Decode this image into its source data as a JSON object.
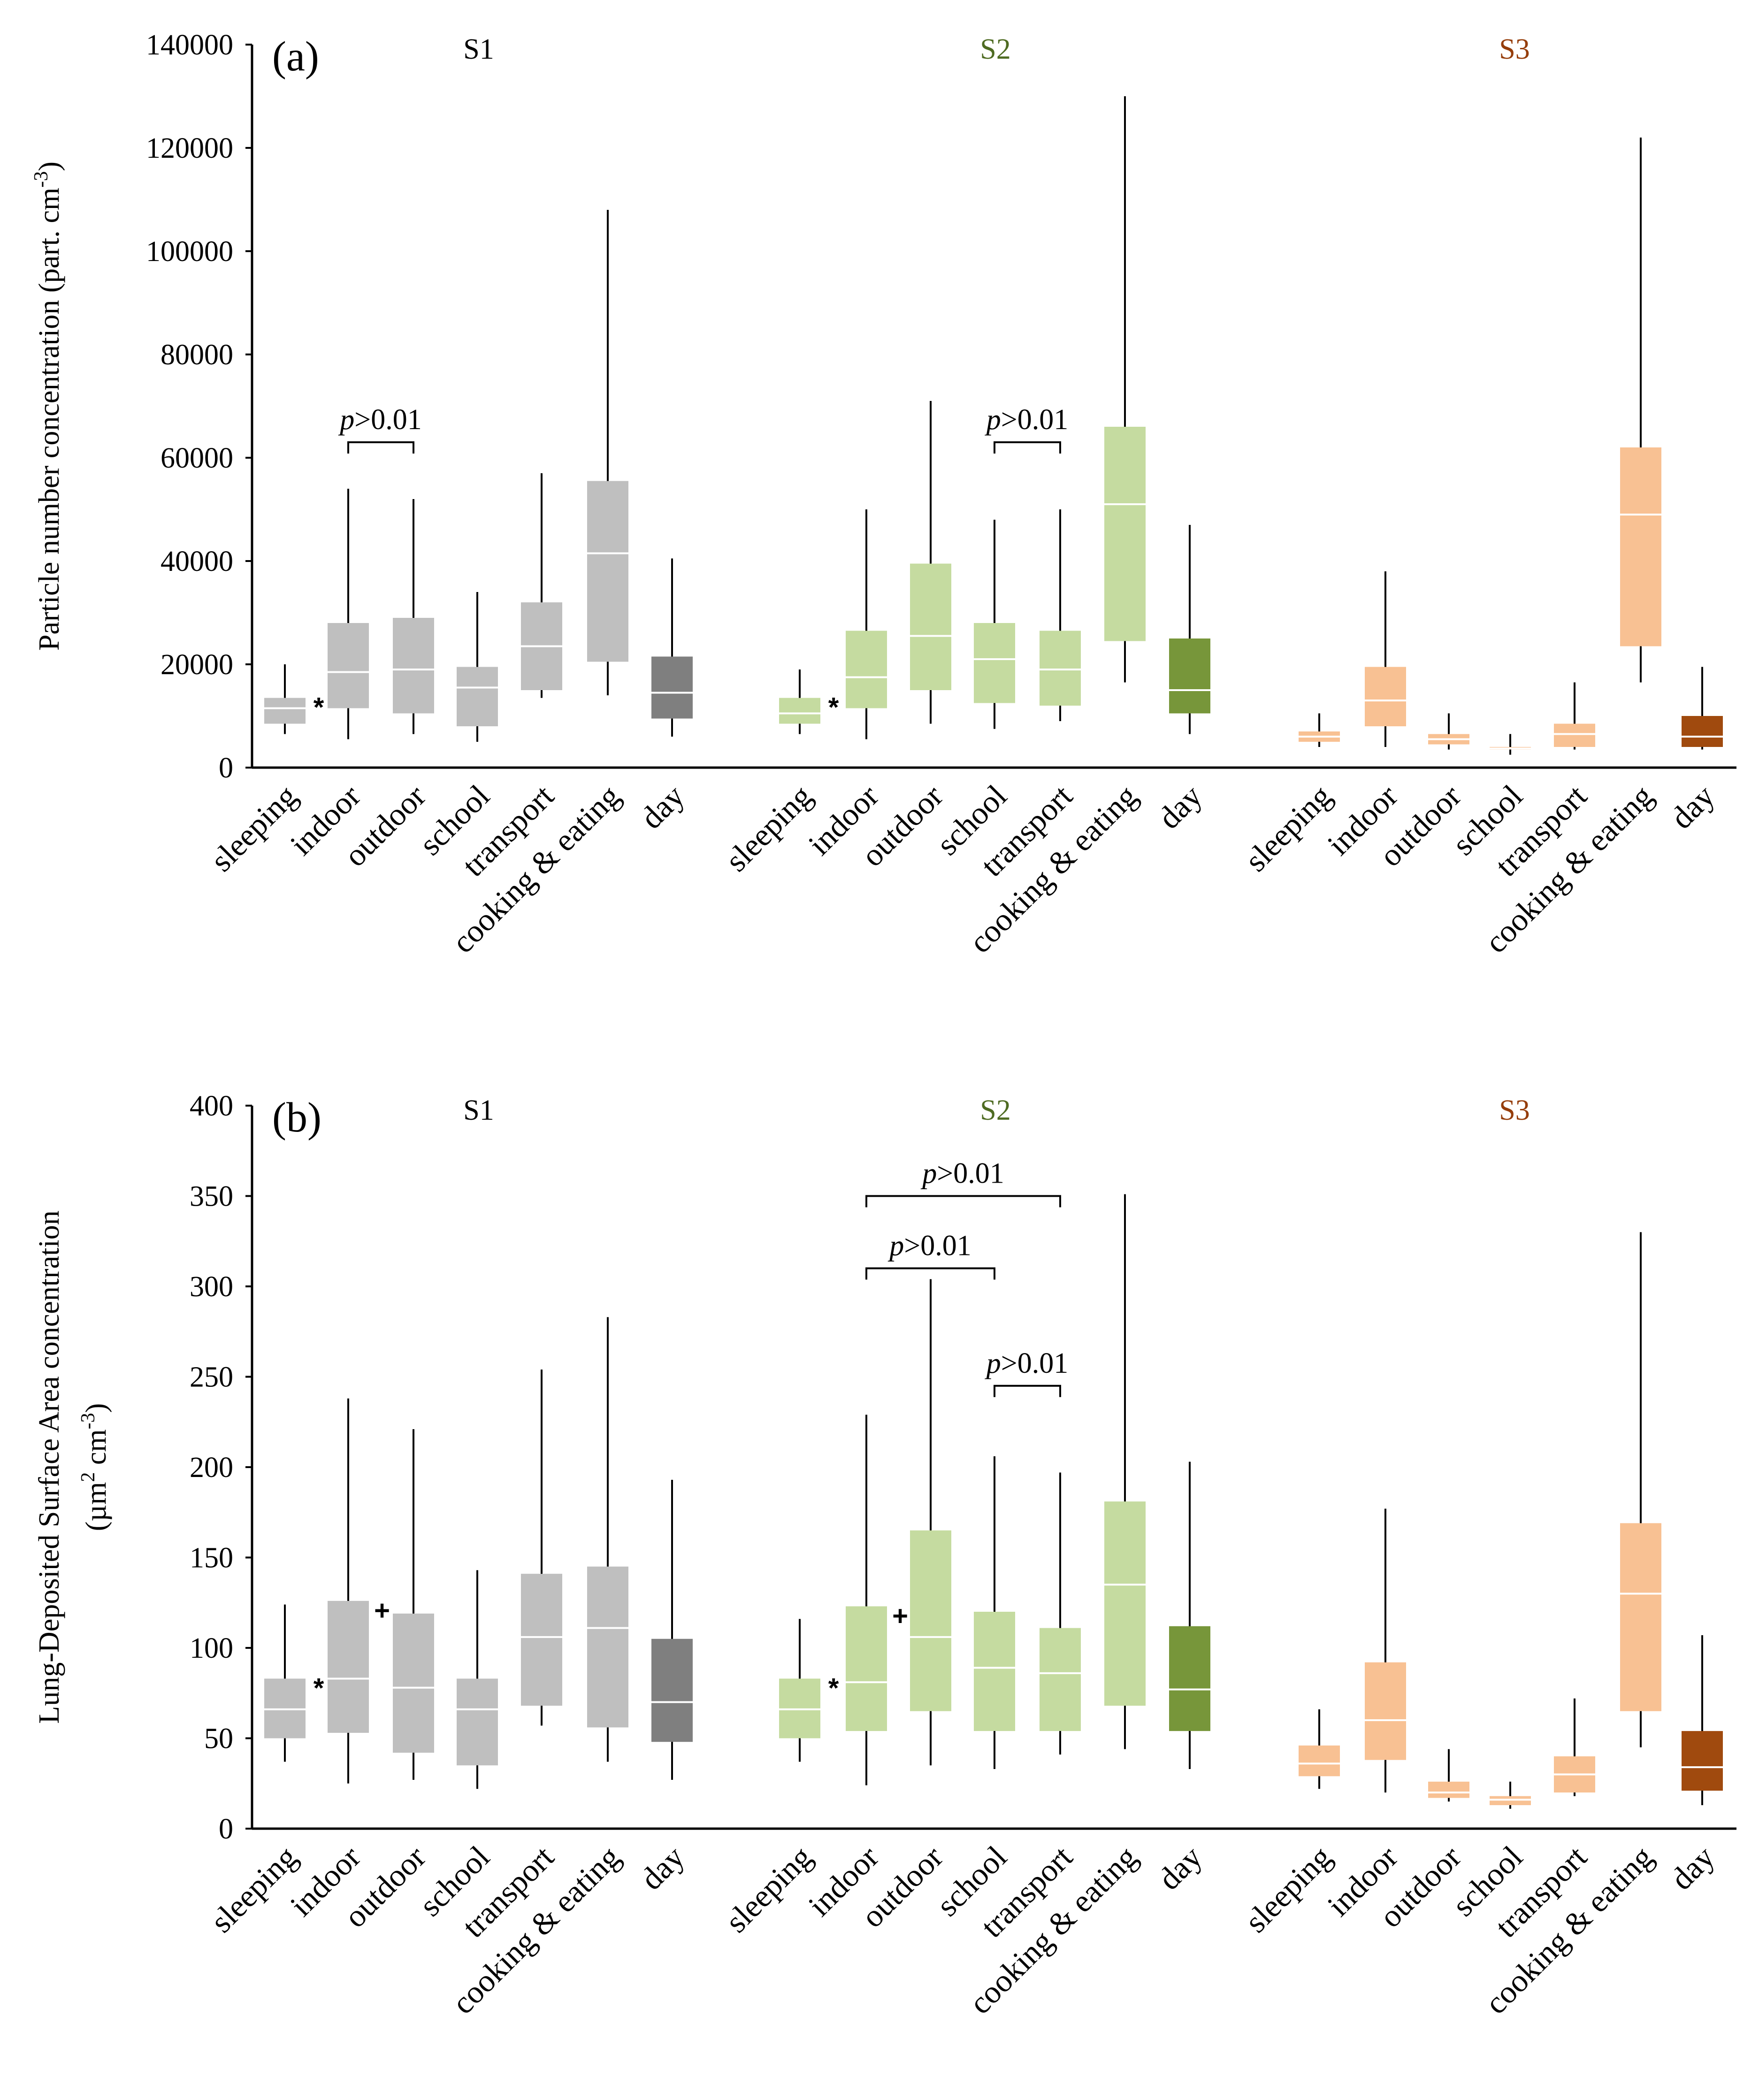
{
  "chart_data": [
    {
      "type": "box",
      "panel_label": "(a)",
      "ylabel": "Particle number concentration (part. cm",
      "ylabel_superscript": "-3",
      "ylabel_close": ")",
      "ylim": [
        0,
        140000
      ],
      "yticks": [
        0,
        20000,
        40000,
        60000,
        80000,
        100000,
        120000,
        140000
      ],
      "ytick_labels": [
        "0",
        "20000",
        "40000",
        "60000",
        "80000",
        "100000",
        "120000",
        "140000"
      ],
      "groups": [
        {
          "name": "S1",
          "name_color": "#000000",
          "color": "#bfbfbf",
          "day_color": "#7f7f7f",
          "categories": [
            "sleeping",
            "indoor",
            "outdoor",
            "school",
            "transport",
            "cooking & eating",
            "day"
          ],
          "boxes": [
            {
              "min": 6500,
              "q1": 8500,
              "median": 11500,
              "q3": 13500,
              "max": 20000
            },
            {
              "min": 5500,
              "q1": 11500,
              "median": 18500,
              "q3": 28000,
              "max": 54000
            },
            {
              "min": 6500,
              "q1": 10500,
              "median": 19000,
              "q3": 29000,
              "max": 52000
            },
            {
              "min": 5000,
              "q1": 8000,
              "median": 15500,
              "q3": 19500,
              "max": 34000
            },
            {
              "min": 13500,
              "q1": 15000,
              "median": 23500,
              "q3": 32000,
              "max": 57000
            },
            {
              "min": 14000,
              "q1": 20500,
              "median": 41500,
              "q3": 55500,
              "max": 108000
            },
            {
              "min": 6000,
              "q1": 9500,
              "median": 14500,
              "q3": 21500,
              "max": 40500
            }
          ]
        },
        {
          "name": "S2",
          "name_color": "#4e6b22",
          "color": "#c5dba0",
          "day_color": "#77963a",
          "categories": [
            "sleeping",
            "indoor",
            "outdoor",
            "school",
            "transport",
            "cooking & eating",
            "day"
          ],
          "boxes": [
            {
              "min": 6500,
              "q1": 8500,
              "median": 10500,
              "q3": 13500,
              "max": 19000
            },
            {
              "min": 5500,
              "q1": 11500,
              "median": 17500,
              "q3": 26500,
              "max": 50000
            },
            {
              "min": 8500,
              "q1": 15000,
              "median": 25500,
              "q3": 39500,
              "max": 71000
            },
            {
              "min": 7500,
              "q1": 12500,
              "median": 21000,
              "q3": 28000,
              "max": 48000
            },
            {
              "min": 9000,
              "q1": 12000,
              "median": 19000,
              "q3": 26500,
              "max": 50000
            },
            {
              "min": 16500,
              "q1": 24500,
              "median": 51000,
              "q3": 66000,
              "max": 130000
            },
            {
              "min": 6500,
              "q1": 10500,
              "median": 15000,
              "q3": 25000,
              "max": 47000
            }
          ]
        },
        {
          "name": "S3",
          "name_color": "#953d0a",
          "color": "#f8c193",
          "day_color": "#a04a0e",
          "categories": [
            "sleeping",
            "indoor",
            "outdoor",
            "school",
            "transport",
            "cooking & eating",
            "day"
          ],
          "boxes": [
            {
              "min": 4000,
              "q1": 5000,
              "median": 6000,
              "q3": 7000,
              "max": 10500
            },
            {
              "min": 4000,
              "q1": 8000,
              "median": 13000,
              "q3": 19500,
              "max": 38000
            },
            {
              "min": 3500,
              "q1": 4500,
              "median": 5500,
              "q3": 6500,
              "max": 10500
            },
            {
              "min": 2500,
              "q1": 3500,
              "median": 3700,
              "q3": 4000,
              "max": 6500
            },
            {
              "min": 3500,
              "q1": 4000,
              "median": 6500,
              "q3": 8500,
              "max": 16500
            },
            {
              "min": 16500,
              "q1": 23500,
              "median": 49000,
              "q3": 62000,
              "max": 122000
            },
            {
              "min": 3500,
              "q1": 4000,
              "median": 6000,
              "q3": 10000,
              "max": 19500
            }
          ]
        }
      ],
      "markers": [
        {
          "group": 0,
          "box": 0,
          "symbol": "*"
        },
        {
          "group": 1,
          "box": 0,
          "symbol": "*"
        }
      ],
      "annotations": [
        {
          "text_italic": "p",
          "text": ">0.01",
          "group": 0,
          "from": 1,
          "to": 2,
          "y": 63000
        },
        {
          "text_italic": "p",
          "text": ">0.01",
          "group": 1,
          "from": 3,
          "to": 4,
          "y": 63000
        }
      ]
    },
    {
      "type": "box",
      "panel_label": "(b)",
      "ylabel": "Lung-Deposited Surface Area concentration",
      "ylabel2": "(µm",
      "ylabel2_sup1": "2",
      "ylabel2_mid": " cm",
      "ylabel2_sup2": "-3",
      "ylabel2_close": ")",
      "ylim": [
        0,
        400
      ],
      "yticks": [
        0,
        50,
        100,
        150,
        200,
        250,
        300,
        350,
        400
      ],
      "ytick_labels": [
        "0",
        "50",
        "100",
        "150",
        "200",
        "250",
        "300",
        "350",
        "400"
      ],
      "groups": [
        {
          "name": "S1",
          "name_color": "#000000",
          "color": "#bfbfbf",
          "day_color": "#7f7f7f",
          "categories": [
            "sleeping",
            "indoor",
            "outdoor",
            "school",
            "transport",
            "cooking & eating",
            "day"
          ],
          "boxes": [
            {
              "min": 37,
              "q1": 50,
              "median": 66,
              "q3": 83,
              "max": 124
            },
            {
              "min": 25,
              "q1": 53,
              "median": 83,
              "q3": 126,
              "max": 238
            },
            {
              "min": 27,
              "q1": 42,
              "median": 78,
              "q3": 119,
              "max": 221
            },
            {
              "min": 22,
              "q1": 35,
              "median": 66,
              "q3": 83,
              "max": 143
            },
            {
              "min": 57,
              "q1": 68,
              "median": 106,
              "q3": 141,
              "max": 254
            },
            {
              "min": 37,
              "q1": 56,
              "median": 111,
              "q3": 145,
              "max": 283
            },
            {
              "min": 27,
              "q1": 48,
              "median": 70,
              "q3": 105,
              "max": 193
            }
          ]
        },
        {
          "name": "S2",
          "name_color": "#4e6b22",
          "color": "#c5dba0",
          "day_color": "#77963a",
          "categories": [
            "sleeping",
            "indoor",
            "outdoor",
            "school",
            "transport",
            "cooking & eating",
            "day"
          ],
          "boxes": [
            {
              "min": 37,
              "q1": 50,
              "median": 66,
              "q3": 83,
              "max": 116
            },
            {
              "min": 24,
              "q1": 54,
              "median": 81,
              "q3": 123,
              "max": 229
            },
            {
              "min": 35,
              "q1": 65,
              "median": 106,
              "q3": 165,
              "max": 304
            },
            {
              "min": 33,
              "q1": 54,
              "median": 89,
              "q3": 120,
              "max": 206
            },
            {
              "min": 41,
              "q1": 54,
              "median": 86,
              "q3": 111,
              "max": 197
            },
            {
              "min": 44,
              "q1": 68,
              "median": 135,
              "q3": 181,
              "max": 351
            },
            {
              "min": 33,
              "q1": 54,
              "median": 77,
              "q3": 112,
              "max": 203
            }
          ]
        },
        {
          "name": "S3",
          "name_color": "#953d0a",
          "color": "#f8c193",
          "day_color": "#a04a0e",
          "categories": [
            "sleeping",
            "indoor",
            "outdoor",
            "school",
            "transport",
            "cooking & eating",
            "day"
          ],
          "boxes": [
            {
              "min": 22,
              "q1": 29,
              "median": 36,
              "q3": 46,
              "max": 66
            },
            {
              "min": 20,
              "q1": 38,
              "median": 60,
              "q3": 92,
              "max": 177
            },
            {
              "min": 15,
              "q1": 17,
              "median": 20,
              "q3": 26,
              "max": 44
            },
            {
              "min": 11,
              "q1": 13,
              "median": 16,
              "q3": 18,
              "max": 26
            },
            {
              "min": 18,
              "q1": 20,
              "median": 30,
              "q3": 40,
              "max": 72
            },
            {
              "min": 45,
              "q1": 65,
              "median": 130,
              "q3": 169,
              "max": 330
            },
            {
              "min": 13,
              "q1": 21,
              "median": 34,
              "q3": 54,
              "max": 107
            }
          ]
        }
      ],
      "markers": [
        {
          "group": 0,
          "box": 0,
          "symbol": "*"
        },
        {
          "group": 0,
          "box": 1,
          "symbol": "+"
        },
        {
          "group": 1,
          "box": 0,
          "symbol": "*"
        },
        {
          "group": 1,
          "box": 1,
          "symbol": "+"
        }
      ],
      "annotations": [
        {
          "text_italic": "p",
          "text": ">0.01",
          "group": 1,
          "from": 1,
          "to": 4,
          "y": 350
        },
        {
          "text_italic": "p",
          "text": ">0.01",
          "group": 1,
          "from": 1,
          "to": 3,
          "y": 310
        },
        {
          "text_italic": "p",
          "text": ">0.01",
          "group": 1,
          "from": 3,
          "to": 4,
          "y": 245
        }
      ]
    }
  ]
}
